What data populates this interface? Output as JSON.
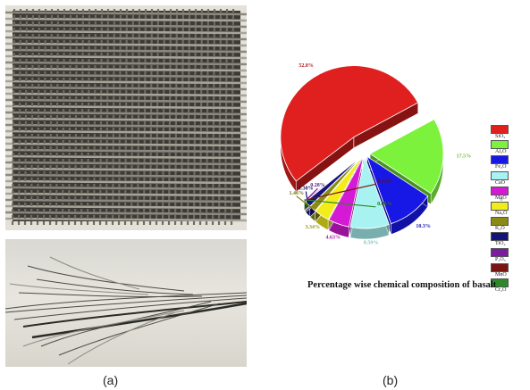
{
  "panel_labels": {
    "a": "(a)",
    "b": "(b)"
  },
  "photos": {
    "top": "basalt fiber woven fabric photograph",
    "bottom": "basalt fiber strands photograph"
  },
  "chart_data": {
    "type": "pie",
    "title": "Percentage wise chemical composition of basalt",
    "categories": [
      "SiO2",
      "Al2O3",
      "Fe2O3",
      "CaO",
      "MgO",
      "Na2O",
      "K2O",
      "TiO2",
      "P2O5",
      "MnO",
      "Cr2O3"
    ],
    "legend_labels": [
      "SiO₂",
      "Al₂O",
      "Fe₂O",
      "CaO",
      "MgO",
      "Na₂O",
      "K₂O",
      "TiO₂",
      "P₂O₅",
      "MnO",
      "Cr₂O"
    ],
    "values": [
      52.8,
      17.5,
      10.3,
      8.59,
      4.63,
      3.34,
      1.46,
      1.38,
      0.28,
      0.16,
      0.06
    ],
    "data_labels": [
      "52.8%",
      "17.5%",
      "10.3%",
      "8.59%",
      "4.63%",
      "3.34%",
      "1.46%",
      "1.38%",
      "0.28%",
      "0.16%",
      "0.06%"
    ],
    "colors": [
      "#e0201e",
      "#7cf23c",
      "#1818e6",
      "#a8f2f2",
      "#d41ad4",
      "#f2ec1a",
      "#8a8a14",
      "#14147a",
      "#7a1ea0",
      "#7a1414",
      "#2a8a2a"
    ],
    "legend_position": "right"
  }
}
